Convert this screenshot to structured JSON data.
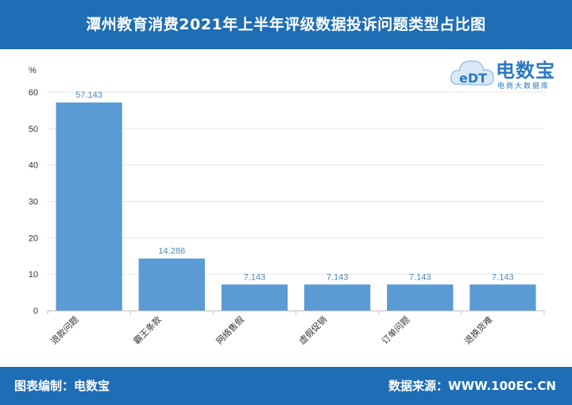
{
  "header": {
    "title": "潭州教育消费2021年上半年评级数据投诉问题类型占比图"
  },
  "logo": {
    "text": "电数宝",
    "subtitle": "电商大数据库",
    "mark": "eDT"
  },
  "footer": {
    "left": "图表编制：电数宝",
    "right": "数据来源：WWW.100EC.CN"
  },
  "colors": {
    "header_bg": "#1f6db5",
    "bar": "#5b9bd5",
    "value_label": "#4f86b8"
  },
  "chart_data": {
    "type": "bar",
    "title": "",
    "xlabel": "",
    "ylabel": "%",
    "categories": [
      "退款问题",
      "霸王条款",
      "网络售假",
      "虚假促销",
      "订单问题",
      "退换货难"
    ],
    "values": [
      57.143,
      14.286,
      7.143,
      7.143,
      7.143,
      7.143
    ],
    "value_labels": [
      "57.143",
      "14.286",
      "7.143",
      "7.143",
      "7.143",
      "7.143"
    ],
    "ylim": [
      0,
      60
    ],
    "yticks": [
      0,
      10,
      20,
      30,
      40,
      50,
      60
    ],
    "grid": true,
    "legend": "none"
  }
}
